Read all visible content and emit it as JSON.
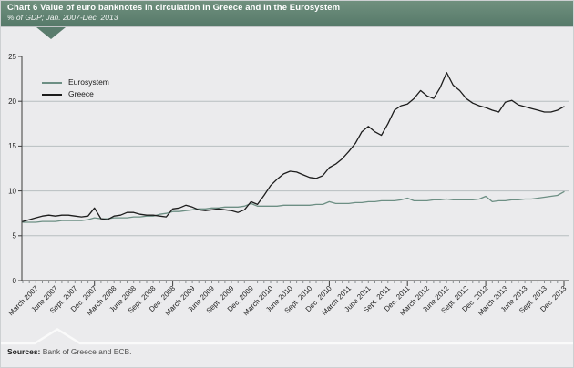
{
  "header": {
    "title": "Chart 6 Value of euro banknotes in circulation in Greece and in the Eurosystem",
    "subtitle": "% of GDP; Jan. 2007-Dec. 2013"
  },
  "footer": {
    "sources_label": "Sources:",
    "sources_text": " Bank of Greece and ECB."
  },
  "legend": [
    {
      "label": "Eurosystem",
      "color": "#6d8f84"
    },
    {
      "label": "Greece",
      "color": "#1c1c1c"
    }
  ],
  "colors": {
    "header_green_top": "#71917f",
    "header_green_bottom": "#577a6a",
    "panel_bg": "#ebebed",
    "gridline": "#b7bec0",
    "axis": "#3c3c3c",
    "tick_minor": "#8a8f92",
    "divider_white": "#fafafa",
    "eurosystem_line": "#6d8f84",
    "greece_line": "#1c1c1c"
  },
  "chart_data": {
    "type": "line",
    "title": "Value of euro banknotes in circulation in Greece and in the Eurosystem",
    "ylabel": "% of GDP",
    "ylim": [
      0,
      25
    ],
    "yticks": [
      0,
      5,
      10,
      15,
      20,
      25
    ],
    "gridlines": [
      5,
      10,
      15,
      20
    ],
    "grid": "horizontal-only",
    "legend_position": "top-left-inside",
    "x_unit": "month",
    "x_range": "Jan. 2007 - Dec. 2013",
    "x_tick_labels": [
      "March 2007",
      "June 2007",
      "Sept. 2007",
      "Dec. 2007",
      "March 2008",
      "June 2008",
      "Sept. 2008",
      "Dec. 2008",
      "March 2009",
      "June 2009",
      "Sept. 2009",
      "Dec. 2009",
      "March 2010",
      "June 2010",
      "Sept. 2010",
      "Dec. 2010",
      "March 2011",
      "June 2011",
      "Sept. 2011",
      "Dec. 2011",
      "March 2012",
      "June 2012",
      "Sept. 2012",
      "Dec. 2012",
      "March 2013",
      "June 2013",
      "Sept. 2013",
      "Dec. 2013"
    ],
    "series": [
      {
        "name": "Eurosystem",
        "color": "#6d8f84",
        "values": [
          6.5,
          6.5,
          6.5,
          6.6,
          6.6,
          6.6,
          6.7,
          6.7,
          6.7,
          6.7,
          6.8,
          7.0,
          6.9,
          6.9,
          7.0,
          7.0,
          7.0,
          7.1,
          7.1,
          7.2,
          7.2,
          7.4,
          7.5,
          7.7,
          7.7,
          7.8,
          7.9,
          8.0,
          8.0,
          8.1,
          8.1,
          8.2,
          8.2,
          8.2,
          8.3,
          8.6,
          8.3,
          8.3,
          8.3,
          8.3,
          8.4,
          8.4,
          8.4,
          8.4,
          8.4,
          8.5,
          8.5,
          8.8,
          8.6,
          8.6,
          8.6,
          8.7,
          8.7,
          8.8,
          8.8,
          8.9,
          8.9,
          8.9,
          9.0,
          9.2,
          8.9,
          8.9,
          8.9,
          9.0,
          9.0,
          9.1,
          9.0,
          9.0,
          9.0,
          9.0,
          9.1,
          9.4,
          8.8,
          8.9,
          8.9,
          9.0,
          9.0,
          9.1,
          9.1,
          9.2,
          9.3,
          9.4,
          9.5,
          9.9
        ]
      },
      {
        "name": "Greece",
        "color": "#1c1c1c",
        "values": [
          6.6,
          6.8,
          7.0,
          7.2,
          7.3,
          7.2,
          7.3,
          7.3,
          7.2,
          7.1,
          7.2,
          8.1,
          6.9,
          6.8,
          7.2,
          7.3,
          7.6,
          7.6,
          7.4,
          7.3,
          7.3,
          7.2,
          7.1,
          8.0,
          8.1,
          8.4,
          8.2,
          7.9,
          7.8,
          7.9,
          8.0,
          7.9,
          7.8,
          7.6,
          7.9,
          8.8,
          8.5,
          9.5,
          10.6,
          11.3,
          11.9,
          12.2,
          12.1,
          11.8,
          11.5,
          11.4,
          11.7,
          12.6,
          13.0,
          13.6,
          14.4,
          15.3,
          16.6,
          17.2,
          16.6,
          16.2,
          17.5,
          19.0,
          19.5,
          19.7,
          20.3,
          21.2,
          20.6,
          20.3,
          21.5,
          23.2,
          21.8,
          21.2,
          20.3,
          19.8,
          19.5,
          19.3,
          19.0,
          18.8,
          19.9,
          20.1,
          19.6,
          19.4,
          19.2,
          19.0,
          18.8,
          18.8,
          19.0,
          19.4
        ]
      }
    ]
  }
}
